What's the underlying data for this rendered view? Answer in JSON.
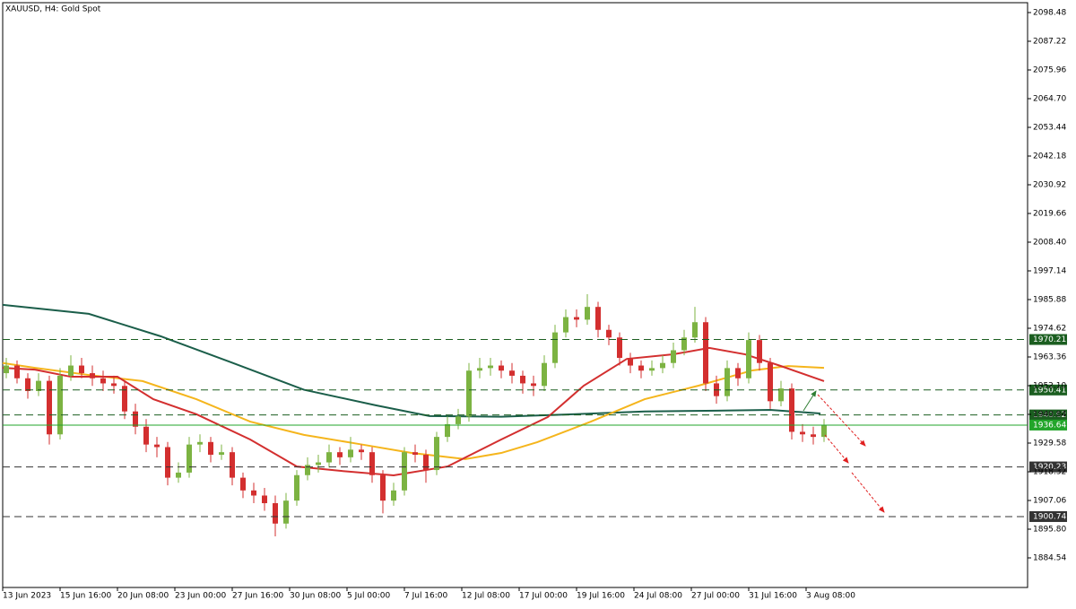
{
  "chart_data": {
    "type": "candlestick",
    "title": "XAUUSD, H4:  Gold Spot",
    "up_color": "#7cb342",
    "down_color": "#d32f2f",
    "x": [
      1,
      4,
      7,
      10,
      13,
      16,
      19,
      22,
      25,
      28,
      31,
      34,
      37,
      40,
      43,
      46,
      49,
      52,
      55,
      58,
      61,
      64,
      67,
      70,
      73,
      76,
      79,
      82,
      85,
      88,
      91,
      94,
      97,
      100,
      103,
      106,
      109,
      112,
      115,
      118,
      121,
      124,
      127,
      130,
      133,
      136,
      139,
      142,
      145,
      148,
      151,
      154,
      157,
      160,
      163,
      166,
      169,
      172,
      175,
      178,
      181,
      184,
      187,
      190,
      193,
      196,
      199,
      202,
      205,
      208,
      211,
      214,
      217,
      220,
      223,
      226,
      229
    ],
    "open": [
      1957,
      1960,
      1955,
      1950,
      1954,
      1933,
      1956,
      1960,
      1957,
      1955,
      1953,
      1952,
      1942,
      1936,
      1929,
      1928,
      1916,
      1918,
      1929,
      1930,
      1925,
      1926,
      1916,
      1911,
      1909,
      1906,
      1898,
      1907,
      1917,
      1921,
      1922,
      1926,
      1924,
      1927,
      1926,
      1917,
      1907,
      1911,
      1926,
      1925,
      1919,
      1932,
      1937,
      1940,
      1958,
      1959,
      1960,
      1958,
      1956,
      1953,
      1952,
      1961,
      1973,
      1979,
      1978,
      1983,
      1974,
      1971,
      1963,
      1960,
      1958,
      1959,
      1961,
      1966,
      1971,
      1977,
      1953,
      1948,
      1959,
      1955,
      1970,
      1961,
      1946,
      1951,
      1934,
      1933,
      1932
    ],
    "high": [
      1963,
      1962,
      1957,
      1957,
      1956,
      1959,
      1964,
      1963,
      1960,
      1958,
      1956,
      1954,
      1945,
      1939,
      1932,
      1930,
      1922,
      1932,
      1933,
      1932,
      1929,
      1928,
      1918,
      1914,
      1912,
      1909,
      1910,
      1919,
      1924,
      1925,
      1929,
      1928,
      1932,
      1929,
      1928,
      1919,
      1914,
      1928,
      1929,
      1927,
      1934,
      1940,
      1943,
      1961,
      1963,
      1963,
      1962,
      1961,
      1958,
      1956,
      1964,
      1976,
      1982,
      1982,
      1988,
      1985,
      1976,
      1973,
      1965,
      1962,
      1962,
      1964,
      1969,
      1974,
      1983,
      1979,
      1956,
      1962,
      1961,
      1973,
      1972,
      1963,
      1954,
      1953,
      1937,
      1936,
      1939
    ],
    "low": [
      1955,
      1953,
      1947,
      1948,
      1929,
      1931,
      1954,
      1955,
      1952,
      1950,
      1949,
      1939,
      1933,
      1926,
      1924,
      1913,
      1914,
      1916,
      1926,
      1922,
      1923,
      1913,
      1908,
      1906,
      1903,
      1893,
      1896,
      1905,
      1915,
      1918,
      1920,
      1921,
      1922,
      1923,
      1914,
      1902,
      1905,
      1909,
      1922,
      1914,
      1917,
      1930,
      1935,
      1938,
      1955,
      1956,
      1955,
      1953,
      1949,
      1948,
      1950,
      1959,
      1971,
      1975,
      1976,
      1971,
      1968,
      1960,
      1957,
      1955,
      1956,
      1957,
      1959,
      1964,
      1969,
      1950,
      1945,
      1946,
      1952,
      1953,
      1958,
      1943,
      1944,
      1931,
      1930,
      1929,
      1930
    ],
    "close": [
      1960,
      1955,
      1950,
      1954,
      1933,
      1956,
      1960,
      1957,
      1955,
      1953,
      1952,
      1942,
      1936,
      1929,
      1928,
      1916,
      1918,
      1929,
      1930,
      1925,
      1926,
      1916,
      1911,
      1909,
      1906,
      1898,
      1907,
      1917,
      1921,
      1922,
      1926,
      1924,
      1927,
      1926,
      1917,
      1907,
      1911,
      1926,
      1925,
      1919,
      1932,
      1937,
      1940,
      1958,
      1959,
      1960,
      1958,
      1956,
      1953,
      1952,
      1961,
      1973,
      1979,
      1978,
      1983,
      1974,
      1971,
      1963,
      1960,
      1958,
      1959,
      1961,
      1966,
      1971,
      1977,
      1953,
      1948,
      1959,
      1955,
      1970,
      1961,
      1946,
      1951,
      1934,
      1933,
      1932,
      1936.64
    ],
    "moving_averages": [
      {
        "color": "#1b5e4a",
        "x": [
          0,
          24,
          44,
          64,
          84,
          104,
          119,
          139,
          159,
          179,
          199,
          214,
          228
        ],
        "values": [
          1983.8,
          1980.3,
          1971.5,
          1961.1,
          1950.5,
          1944.4,
          1940.2,
          1939.9,
          1940.9,
          1942.0,
          1942.3,
          1942.6,
          1941.2
        ]
      },
      {
        "color": "#f5b51c",
        "x": [
          0,
          9,
          24,
          39,
          54,
          69,
          84,
          99,
          114,
          129,
          139,
          149,
          164,
          179,
          194,
          209,
          219,
          229
        ],
        "values": [
          1961.0,
          1959.1,
          1956.3,
          1953.9,
          1946.8,
          1938.0,
          1932.8,
          1929.3,
          1925.7,
          1923.3,
          1925.7,
          1929.9,
          1938.0,
          1946.8,
          1952.1,
          1958.1,
          1959.8,
          1959.1
        ]
      },
      {
        "color": "#d32f2f",
        "x": [
          0,
          9,
          19,
          32,
          42,
          54,
          69,
          82,
          94,
          109,
          124,
          139,
          152,
          162,
          174,
          187,
          197,
          207,
          217,
          229
        ],
        "values": [
          1959.1,
          1958.4,
          1955.6,
          1955.6,
          1946.8,
          1940.9,
          1931.0,
          1920.4,
          1918.7,
          1916.9,
          1920.4,
          1931.0,
          1939.8,
          1952.1,
          1962.6,
          1964.4,
          1966.9,
          1964.4,
          1959.8,
          1953.9
        ]
      }
    ],
    "levels": [
      {
        "value": 1970.21,
        "color": "#1b5e20"
      },
      {
        "value": 1950.41,
        "color": "#1b5e20"
      },
      {
        "value": 1940.62,
        "color": "#1b5e20"
      },
      {
        "value": 1920.23,
        "color": "#333333"
      },
      {
        "value": 1900.74,
        "color": "#333333"
      }
    ],
    "current_price": {
      "value": 1936.64,
      "color": "#22a52a"
    },
    "xlim": [
      0,
      285.75
    ],
    "xticks": [
      {
        "value": 0,
        "label": "13 Jun 2023"
      },
      {
        "value": 16,
        "label": "15 Jun 16:00"
      },
      {
        "value": 32,
        "label": "20 Jun 08:00"
      },
      {
        "value": 48,
        "label": "23 Jun 00:00"
      },
      {
        "value": 64,
        "label": "27 Jun 16:00"
      },
      {
        "value": 80,
        "label": "30 Jun 08:00"
      },
      {
        "value": 96,
        "label": "5 Jul 00:00"
      },
      {
        "value": 112,
        "label": "7 Jul 16:00"
      },
      {
        "value": 128,
        "label": "12 Jul 08:00"
      },
      {
        "value": 144,
        "label": "17 Jul 00:00"
      },
      {
        "value": 160,
        "label": "19 Jul 16:00"
      },
      {
        "value": 176,
        "label": "24 Jul 08:00"
      },
      {
        "value": 192,
        "label": "27 Jul 00:00"
      },
      {
        "value": 208,
        "label": "31 Jul 16:00"
      },
      {
        "value": 224,
        "label": "3 Aug 08:00"
      }
    ],
    "ylim": [
      1872.93,
      2102.35
    ],
    "yticks": [
      2098.48,
      2087.22,
      2075.96,
      {
        "value": 2064.7,
        "label": "2064.70"
      },
      2053.44,
      2042.18,
      2030.92,
      2019.66,
      {
        "value": 2008.4,
        "label": "2008.40"
      },
      1997.14,
      1985.88,
      1974.62,
      1963.36,
      {
        "value": 1952.1,
        "label": "1952.10"
      },
      1940.84,
      1929.58,
      1918.32,
      1907.06,
      {
        "value": 1895.8,
        "label": "1895.80"
      },
      1884.54
    ]
  }
}
